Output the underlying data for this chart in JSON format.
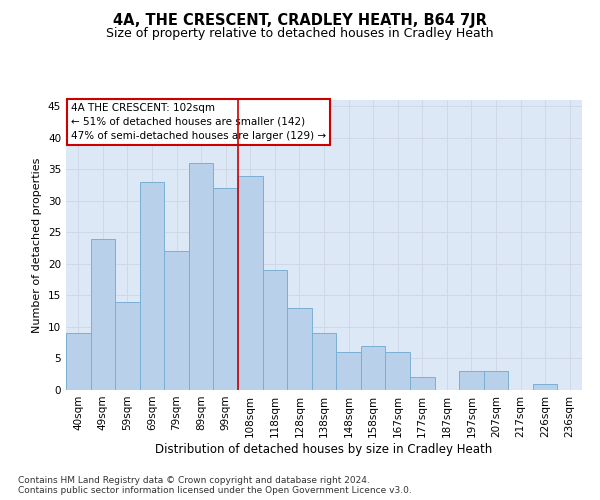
{
  "title": "4A, THE CRESCENT, CRADLEY HEATH, B64 7JR",
  "subtitle": "Size of property relative to detached houses in Cradley Heath",
  "xlabel": "Distribution of detached houses by size in Cradley Heath",
  "ylabel": "Number of detached properties",
  "categories": [
    "40sqm",
    "49sqm",
    "59sqm",
    "69sqm",
    "79sqm",
    "89sqm",
    "99sqm",
    "108sqm",
    "118sqm",
    "128sqm",
    "138sqm",
    "148sqm",
    "158sqm",
    "167sqm",
    "177sqm",
    "187sqm",
    "197sqm",
    "207sqm",
    "217sqm",
    "226sqm",
    "236sqm"
  ],
  "values": [
    9,
    24,
    14,
    33,
    22,
    36,
    32,
    34,
    19,
    13,
    9,
    6,
    7,
    6,
    2,
    0,
    3,
    3,
    0,
    1,
    0
  ],
  "bar_color": "#b8d0ea",
  "bar_edge_color": "#7aafd4",
  "grid_color": "#d0d8e8",
  "background_color": "#dce8f5",
  "annotation_box_text": "4A THE CRESCENT: 102sqm\n← 51% of detached houses are smaller (142)\n47% of semi-detached houses are larger (129) →",
  "annotation_box_color": "#ffffff",
  "annotation_box_edge_color": "#cc0000",
  "vline_x": 6.5,
  "vline_color": "#cc0000",
  "ylim": [
    0,
    46
  ],
  "yticks": [
    0,
    5,
    10,
    15,
    20,
    25,
    30,
    35,
    40,
    45
  ],
  "footnote": "Contains HM Land Registry data © Crown copyright and database right 2024.\nContains public sector information licensed under the Open Government Licence v3.0.",
  "title_fontsize": 10.5,
  "subtitle_fontsize": 9,
  "xlabel_fontsize": 8.5,
  "ylabel_fontsize": 8,
  "tick_fontsize": 7.5,
  "annotation_fontsize": 7.5,
  "footnote_fontsize": 6.5
}
